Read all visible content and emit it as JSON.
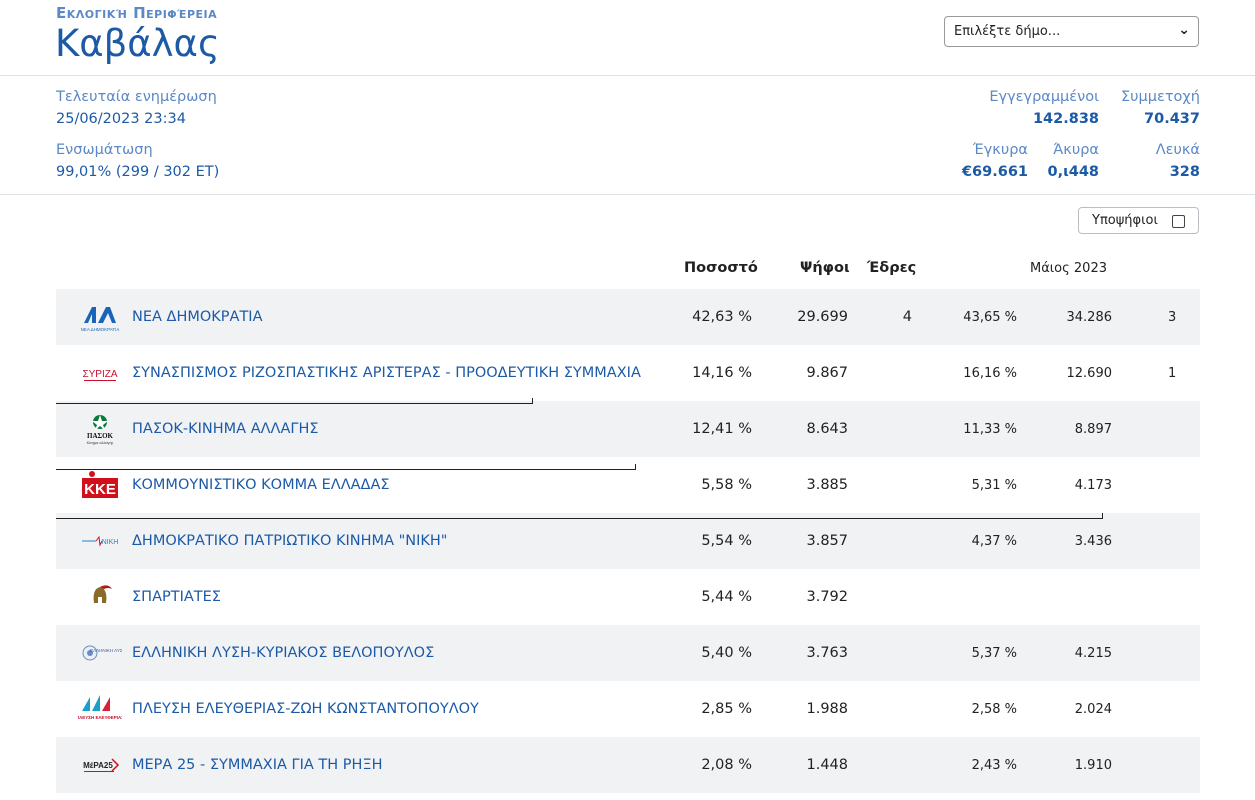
{
  "header": {
    "kicker": "Εκλογική Περιφέρεια",
    "title": "Καβάλας",
    "select_placeholder": "Επιλέξτε δήμο..."
  },
  "stats": {
    "last_update_label": "Τελευταία ενημέρωση",
    "last_update_value": "25/06/2023 23:34",
    "integration_label": "Ενσωμάτωση",
    "integration_value": "99,01% (299 / 302 ΕΤ)",
    "registered_label": "Εγγεγραμμένοι",
    "registered_value": "142.838",
    "turnout_label": "Συμμετοχή",
    "turnout_value": "70.437",
    "valid_label": "Έγκυρα",
    "valid_value": "€69.661",
    "invalid_label": "Άκυρα",
    "invalid_value": "0,ι448",
    "blank_label": "Λευκά",
    "blank_value": "328"
  },
  "candidates_toggle": {
    "label": "Υποψήφιοι"
  },
  "table": {
    "headers": {
      "percent": "Ποσοστό",
      "votes": "Ψήφοι",
      "seats": "Έδρες",
      "prev": "Μάιος 2023"
    },
    "rows": [
      {
        "name": "ΝΕΑ ΔΗΜΟΚΡΑΤΙΑ",
        "percent": "42,63 %",
        "votes": "29.699",
        "seats": "4",
        "prev_percent": "43,65 %",
        "prev_votes": "34.286",
        "prev_seats": "3",
        "logo": "nd-logo"
      },
      {
        "name": "ΣΥΝΑΣΠΙΣΜΟΣ ΡΙΖΟΣΠΑΣΤΙΚΗΣ ΑΡΙΣΤΕΡΑΣ - ΠΡΟΟΔΕΥΤΙΚΗ ΣΥΜΜΑΧΙΑ",
        "percent": "14,16 %",
        "votes": "9.867",
        "seats": "",
        "prev_percent": "16,16 %",
        "prev_votes": "12.690",
        "prev_seats": "1",
        "logo": "syriza-logo"
      },
      {
        "name": "ΠΑΣΟΚ-ΚΙΝΗΜΑ ΑΛΛΑΓΗΣ",
        "percent": "12,41 %",
        "votes": "8.643",
        "seats": "",
        "prev_percent": "11,33 %",
        "prev_votes": "8.897",
        "prev_seats": "",
        "logo": "pasok-logo"
      },
      {
        "name": "ΚΟΜΜΟΥΝΙΣΤΙΚΟ ΚΟΜΜΑ ΕΛΛΑΔΑΣ",
        "percent": "5,58 %",
        "votes": "3.885",
        "seats": "",
        "prev_percent": "5,31 %",
        "prev_votes": "4.173",
        "prev_seats": "",
        "logo": "kke-logo"
      },
      {
        "name": "ΔΗΜΟΚΡΑΤΙΚΟ ΠΑΤΡΙΩΤΙΚΟ ΚΙΝΗΜΑ \"ΝΙΚΗ\"",
        "percent": "5,54 %",
        "votes": "3.857",
        "seats": "",
        "prev_percent": "4,37 %",
        "prev_votes": "3.436",
        "prev_seats": "",
        "logo": "niki-logo"
      },
      {
        "name": "ΣΠΑΡΤΙΑΤΕΣ",
        "percent": "5,44 %",
        "votes": "3.792",
        "seats": "",
        "prev_percent": "",
        "prev_votes": "",
        "prev_seats": "",
        "logo": "spartiates-logo"
      },
      {
        "name": "ΕΛΛΗΝΙΚΗ ΛΥΣΗ-ΚΥΡΙΑΚΟΣ ΒΕΛΟΠΟΥΛΟΣ",
        "percent": "5,40 %",
        "votes": "3.763",
        "seats": "",
        "prev_percent": "5,37 %",
        "prev_votes": "4.215",
        "prev_seats": "",
        "logo": "elliniki-lysi-logo"
      },
      {
        "name": "ΠΛΕΥΣΗ ΕΛΕΥΘΕΡΙΑΣ-ΖΩΗ ΚΩΝΣΤΑΝΤΟΠΟΥΛΟΥ",
        "percent": "2,85 %",
        "votes": "1.988",
        "seats": "",
        "prev_percent": "2,58 %",
        "prev_votes": "2.024",
        "prev_seats": "",
        "logo": "plefsi-logo"
      },
      {
        "name": "ΜΕΡΑ 25 - ΣΥΜΜΑΧΙΑ ΓΙΑ ΤΗ ΡΗΞΗ",
        "percent": "2,08 %",
        "votes": "1.448",
        "seats": "",
        "prev_percent": "2,43 %",
        "prev_votes": "1.910",
        "prev_seats": "",
        "logo": "mera25-logo"
      }
    ]
  },
  "logo_text": {
    "nd_sub": "ΝΕΑ ΔΗΜΟΚΡΑΤΙΑ",
    "syriza": "ΣΥΡΙΖΑ",
    "pasok": "ΠΑΣΟΚ",
    "pasok_sub": "Κίνημα αλλαγής",
    "kke": "ΚΚΕ",
    "niki": "ΝΙΚΗ",
    "el_lysi": "ΕΛΛΗΝΙΚΗ ΛΥΣΗ",
    "plefsi": "ΠΛΕΥΣΗ ΕΛΕΥΘΕΡΙΑΣ",
    "mera25": "ΜέΡΑ25"
  },
  "colors": {
    "accent": "#1c5aa6",
    "label": "#5b88c6",
    "row_alt": "#f1f2f4",
    "nd": "#1b63b8",
    "syriza": "#c8102e",
    "pasok": "#0a7a3c",
    "kke": "#d1101c"
  }
}
